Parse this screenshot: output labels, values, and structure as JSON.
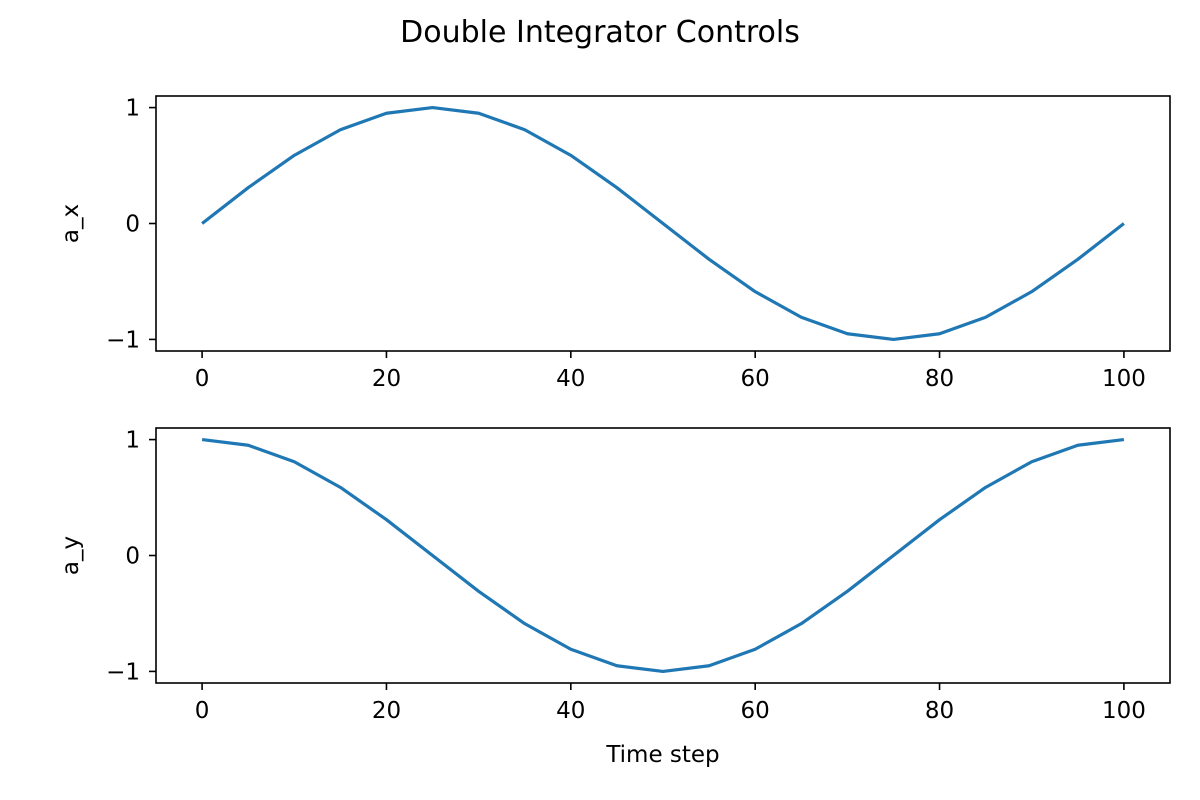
{
  "figure": {
    "title": "Double Integrator Controls"
  },
  "chart_data": [
    {
      "type": "line",
      "title": "",
      "xlabel": "",
      "ylabel": "a_x",
      "xlim": [
        -5,
        105
      ],
      "ylim": [
        -1.1,
        1.1
      ],
      "xticks": [
        0,
        20,
        40,
        60,
        80,
        100
      ],
      "xtick_labels": [
        "0",
        "20",
        "40",
        "60",
        "80",
        "100"
      ],
      "yticks": [
        1,
        0,
        -1
      ],
      "ytick_labels": [
        "1",
        "0",
        "−1"
      ],
      "grid": false,
      "series": [
        {
          "color": "#1f77b4",
          "x": [
            0,
            5,
            10,
            15,
            20,
            25,
            30,
            35,
            40,
            45,
            50,
            55,
            60,
            65,
            70,
            75,
            80,
            85,
            90,
            95,
            100
          ],
          "y": [
            0,
            0.309,
            0.588,
            0.809,
            0.951,
            1,
            0.951,
            0.809,
            0.588,
            0.309,
            0,
            -0.309,
            -0.588,
            -0.809,
            -0.951,
            -1,
            -0.951,
            -0.809,
            -0.588,
            -0.309,
            0
          ]
        }
      ]
    },
    {
      "type": "line",
      "title": "",
      "xlabel": "Time step",
      "ylabel": "a_y",
      "xlim": [
        -5,
        105
      ],
      "ylim": [
        -1.1,
        1.1
      ],
      "xticks": [
        0,
        20,
        40,
        60,
        80,
        100
      ],
      "xtick_labels": [
        "0",
        "20",
        "40",
        "60",
        "80",
        "100"
      ],
      "yticks": [
        1,
        0,
        -1
      ],
      "ytick_labels": [
        "1",
        "0",
        "−1"
      ],
      "grid": false,
      "series": [
        {
          "color": "#1f77b4",
          "x": [
            0,
            5,
            10,
            15,
            20,
            25,
            30,
            35,
            40,
            45,
            50,
            55,
            60,
            65,
            70,
            75,
            80,
            85,
            90,
            95,
            100
          ],
          "y": [
            1,
            0.951,
            0.809,
            0.588,
            0.309,
            0,
            -0.309,
            -0.588,
            -0.809,
            -0.951,
            -1,
            -0.951,
            -0.809,
            -0.588,
            -0.309,
            0,
            0.309,
            0.588,
            0.809,
            0.951,
            1
          ]
        }
      ]
    }
  ]
}
